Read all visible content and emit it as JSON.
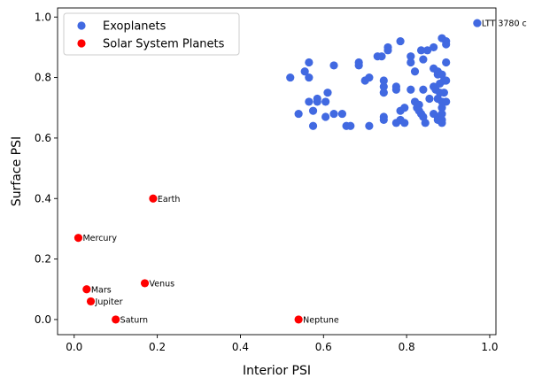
{
  "chart_data": {
    "type": "scatter",
    "xlabel": "Interior PSI",
    "ylabel": "Surface PSI",
    "xlim": [
      -0.04,
      1.015
    ],
    "ylim": [
      -0.05,
      1.03
    ],
    "xticks": [
      0.0,
      0.2,
      0.4,
      0.6,
      0.8,
      1.0
    ],
    "yticks": [
      0.0,
      0.2,
      0.4,
      0.6,
      0.8,
      1.0
    ],
    "xtick_labels": [
      "0.0",
      "0.2",
      "0.4",
      "0.6",
      "0.8",
      "1.0"
    ],
    "ytick_labels": [
      "0.0",
      "0.2",
      "0.4",
      "0.6",
      "0.8",
      "1.0"
    ],
    "grid": false,
    "legend": "top-left",
    "series": [
      {
        "name": "Exoplanets",
        "color": "#4169e1",
        "points": [
          [
            0.52,
            0.8
          ],
          [
            0.54,
            0.68
          ],
          [
            0.555,
            0.82
          ],
          [
            0.565,
            0.8
          ],
          [
            0.565,
            0.85
          ],
          [
            0.565,
            0.72
          ],
          [
            0.575,
            0.64
          ],
          [
            0.575,
            0.69
          ],
          [
            0.585,
            0.72
          ],
          [
            0.585,
            0.73
          ],
          [
            0.605,
            0.72
          ],
          [
            0.605,
            0.67
          ],
          [
            0.61,
            0.75
          ],
          [
            0.625,
            0.84
          ],
          [
            0.625,
            0.68
          ],
          [
            0.645,
            0.68
          ],
          [
            0.655,
            0.64
          ],
          [
            0.665,
            0.64
          ],
          [
            0.685,
            0.85
          ],
          [
            0.685,
            0.84
          ],
          [
            0.7,
            0.79
          ],
          [
            0.71,
            0.8
          ],
          [
            0.71,
            0.64
          ],
          [
            0.73,
            0.87
          ],
          [
            0.74,
            0.87
          ],
          [
            0.745,
            0.79
          ],
          [
            0.745,
            0.77
          ],
          [
            0.745,
            0.75
          ],
          [
            0.745,
            0.67
          ],
          [
            0.745,
            0.66
          ],
          [
            0.755,
            0.9
          ],
          [
            0.755,
            0.89
          ],
          [
            0.775,
            0.77
          ],
          [
            0.775,
            0.76
          ],
          [
            0.775,
            0.65
          ],
          [
            0.785,
            0.92
          ],
          [
            0.785,
            0.69
          ],
          [
            0.785,
            0.66
          ],
          [
            0.795,
            0.7
          ],
          [
            0.795,
            0.65
          ],
          [
            0.81,
            0.87
          ],
          [
            0.81,
            0.85
          ],
          [
            0.81,
            0.76
          ],
          [
            0.82,
            0.82
          ],
          [
            0.82,
            0.72
          ],
          [
            0.825,
            0.7
          ],
          [
            0.83,
            0.71
          ],
          [
            0.83,
            0.69
          ],
          [
            0.835,
            0.89
          ],
          [
            0.835,
            0.68
          ],
          [
            0.84,
            0.86
          ],
          [
            0.84,
            0.76
          ],
          [
            0.84,
            0.67
          ],
          [
            0.845,
            0.65
          ],
          [
            0.85,
            0.89
          ],
          [
            0.855,
            0.73
          ],
          [
            0.865,
            0.9
          ],
          [
            0.865,
            0.83
          ],
          [
            0.865,
            0.77
          ],
          [
            0.865,
            0.68
          ],
          [
            0.87,
            0.76
          ],
          [
            0.875,
            0.82
          ],
          [
            0.875,
            0.81
          ],
          [
            0.875,
            0.73
          ],
          [
            0.875,
            0.67
          ],
          [
            0.875,
            0.66
          ],
          [
            0.88,
            0.78
          ],
          [
            0.88,
            0.75
          ],
          [
            0.885,
            0.93
          ],
          [
            0.885,
            0.81
          ],
          [
            0.885,
            0.72
          ],
          [
            0.885,
            0.7
          ],
          [
            0.885,
            0.68
          ],
          [
            0.885,
            0.66
          ],
          [
            0.885,
            0.65
          ],
          [
            0.89,
            0.79
          ],
          [
            0.895,
            0.92
          ],
          [
            0.895,
            0.91
          ],
          [
            0.895,
            0.85
          ],
          [
            0.895,
            0.79
          ],
          [
            0.895,
            0.72
          ],
          [
            0.89,
            0.75
          ],
          [
            0.97,
            0.98
          ]
        ]
      },
      {
        "name": "Solar System Planets",
        "color": "#ff0000",
        "points": [
          [
            0.01,
            0.27
          ],
          [
            0.03,
            0.1
          ],
          [
            0.04,
            0.06
          ],
          [
            0.1,
            0.0
          ],
          [
            0.17,
            0.12
          ],
          [
            0.19,
            0.4
          ],
          [
            0.54,
            0.0
          ]
        ]
      }
    ],
    "annotations": [
      {
        "text": "LTT 3780 c",
        "x": 0.97,
        "y": 0.98
      },
      {
        "text": "Earth",
        "x": 0.19,
        "y": 0.4
      },
      {
        "text": "Mercury",
        "x": 0.01,
        "y": 0.27
      },
      {
        "text": "Mars",
        "x": 0.03,
        "y": 0.1
      },
      {
        "text": "Venus",
        "x": 0.17,
        "y": 0.12
      },
      {
        "text": "Jupiter",
        "x": 0.04,
        "y": 0.06
      },
      {
        "text": "Saturn",
        "x": 0.1,
        "y": 0.0
      },
      {
        "text": "Neptune",
        "x": 0.54,
        "y": 0.0
      }
    ]
  }
}
